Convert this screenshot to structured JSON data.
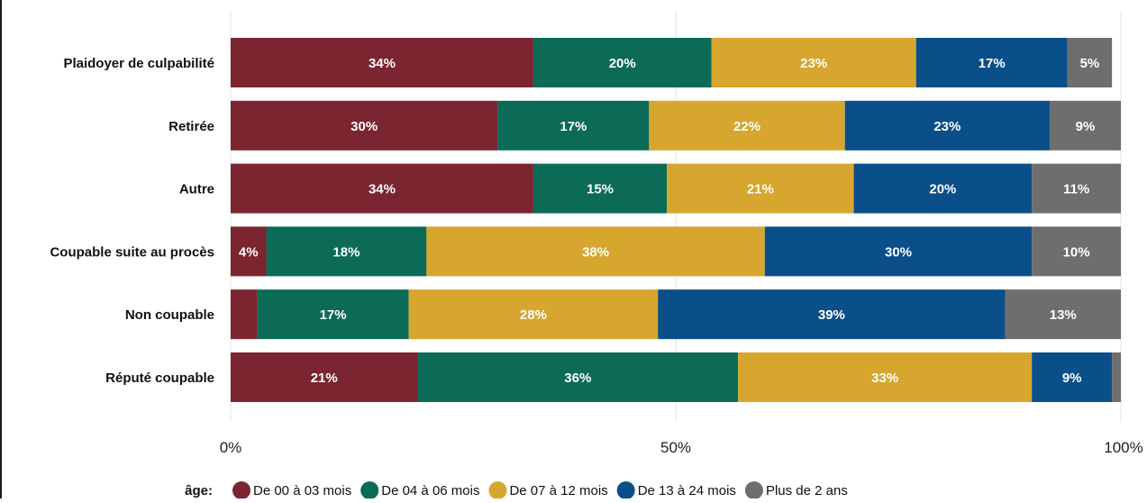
{
  "chart_data": {
    "type": "bar",
    "orientation": "horizontal",
    "stacked": true,
    "categories": [
      "Plaidoyer de culpabilité",
      "Retirée",
      "Autre",
      "Coupable suite au procès",
      "Non coupable",
      "Réputé coupable"
    ],
    "series": [
      {
        "name": "De 00 à 03 mois",
        "color": "#7a2530",
        "values": [
          34,
          30,
          34,
          4,
          3,
          21
        ],
        "labels": [
          "34%",
          "30%",
          "34%",
          "4%",
          "",
          "21%"
        ]
      },
      {
        "name": "De 04 à 06 mois",
        "color": "#0b6b56",
        "values": [
          20,
          17,
          15,
          18,
          17,
          36
        ],
        "labels": [
          "20%",
          "17%",
          "15%",
          "18%",
          "17%",
          "36%"
        ]
      },
      {
        "name": "De 07 à 12 mois",
        "color": "#d6a62e",
        "values": [
          23,
          22,
          21,
          38,
          28,
          33
        ],
        "labels": [
          "23%",
          "22%",
          "21%",
          "38%",
          "28%",
          "33%"
        ]
      },
      {
        "name": "De 13 à 24 mois",
        "color": "#0a4f8a",
        "values": [
          17,
          23,
          20,
          30,
          39,
          9
        ],
        "labels": [
          "17%",
          "23%",
          "20%",
          "30%",
          "39%",
          "9%"
        ]
      },
      {
        "name": "Plus de 2 ans",
        "color": "#6e6e6e",
        "values": [
          5,
          9,
          11,
          10,
          13,
          1
        ],
        "labels": [
          "5%",
          "9%",
          "11%",
          "10%",
          "13%",
          ""
        ]
      }
    ],
    "xlim": [
      0,
      100
    ],
    "x_ticks": [
      "0%",
      "50%",
      "100%"
    ],
    "grid": true,
    "legend": {
      "title": "âge:",
      "position": "bottom"
    }
  }
}
